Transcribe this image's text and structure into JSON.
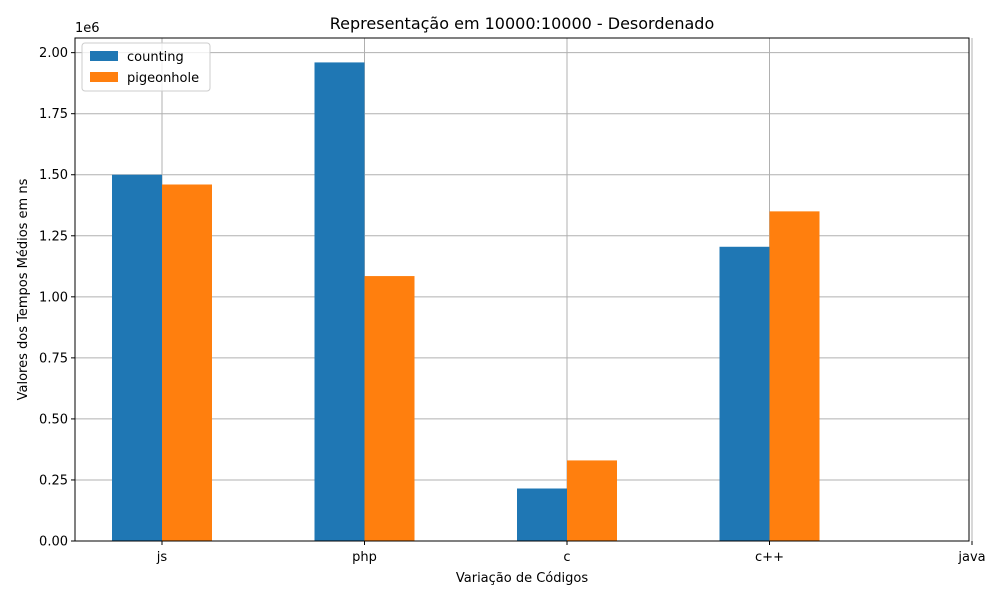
{
  "chart_data": {
    "type": "bar",
    "title": "Representação em 10000:10000 - Desordenado",
    "xlabel": "Variação de Códigos",
    "ylabel": "Valores dos Tempos Médios em ns",
    "y_offset_label": "1e6",
    "categories": [
      "js",
      "php",
      "c",
      "c++",
      "java"
    ],
    "series": [
      {
        "name": "counting",
        "color": "#1f77b4",
        "values": [
          1.5,
          1.96,
          0.215,
          1.205,
          null
        ]
      },
      {
        "name": "pigeonhole",
        "color": "#ff7f0e",
        "values": [
          1.46,
          1.085,
          0.33,
          1.35,
          null
        ]
      }
    ],
    "ylim": [
      0,
      2.06
    ],
    "yticks": [
      "0.00",
      "0.25",
      "0.50",
      "0.75",
      "1.00",
      "1.25",
      "1.50",
      "1.75",
      "2.00"
    ],
    "grid": true,
    "legend_position": "top-left"
  }
}
